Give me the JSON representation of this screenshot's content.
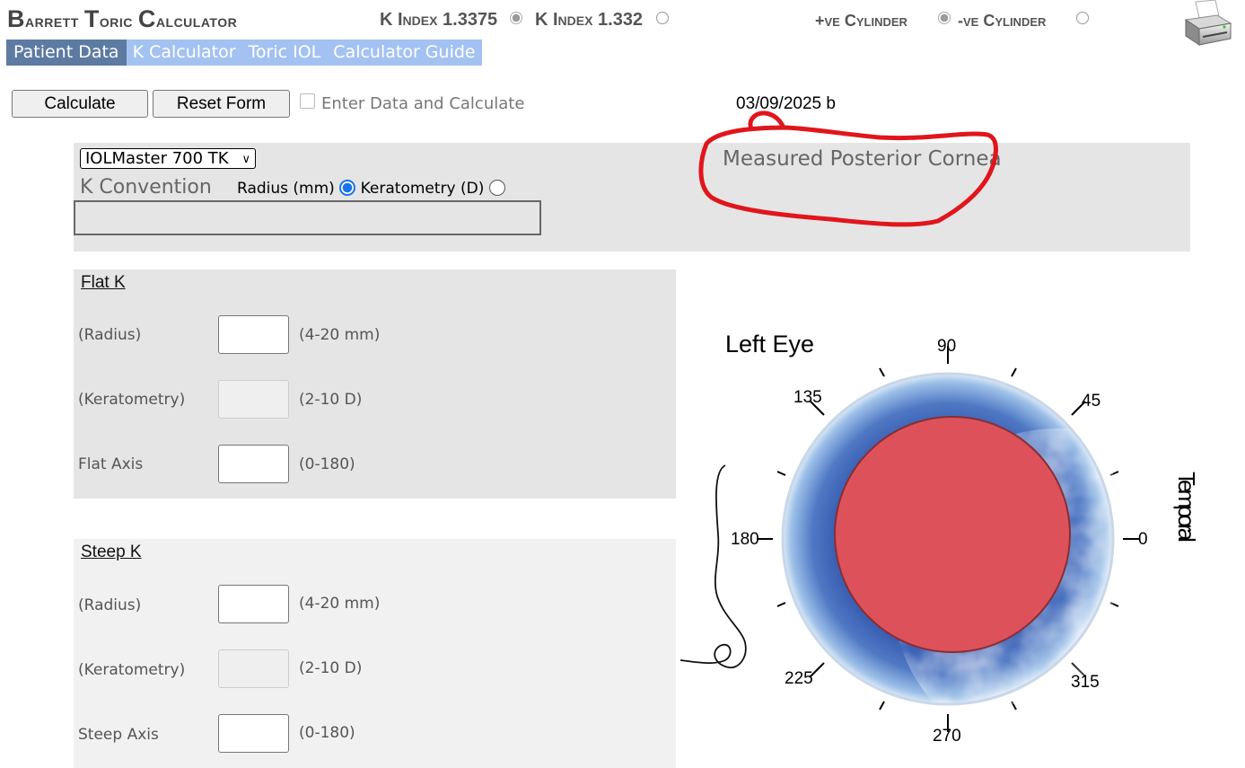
{
  "header": {
    "title_first": "B",
    "title_rest": "arrett ",
    "title_first2": "T",
    "title_rest2": "oric ",
    "title_first3": "C",
    "title_rest3": "alculator",
    "k_index_1": "K Index 1.3375",
    "k_index_2": "K Index 1.332",
    "pos_cyl": "+ve Cylinder",
    "neg_cyl": "-ve Cylinder"
  },
  "nav": {
    "tabs": [
      "Patient Data",
      "K Calculator",
      "Toric IOL",
      "Calculator Guide"
    ],
    "active": 0
  },
  "toolbar": {
    "calculate_label": "Calculate",
    "reset_label": "Reset Form",
    "enter_calc_label": "Enter Data and Calculate",
    "date": "03/09/2025 b"
  },
  "settings": {
    "device": "IOLMaster 700 TK",
    "k_convention_label": "K Convention",
    "radius_label": "Radius (mm)",
    "keratometry_label": "Keratometry (D)",
    "posterior_label": "Measured Posterior Cornea"
  },
  "flat_k": {
    "heading": "Flat K",
    "radius_label": "(Radius)",
    "radius_range": "(4-20 mm)",
    "kerat_label": "(Keratometry)",
    "kerat_range": "(2-10 D)",
    "axis_label": "Flat Axis",
    "axis_range": "(0-180)"
  },
  "steep_k": {
    "heading": "Steep K",
    "radius_label": "(Radius)",
    "radius_range": "(4-20 mm)",
    "kerat_label": "(Keratometry)",
    "kerat_range": "(2-10 D)",
    "axis_label": "Steep Axis",
    "axis_range": "(0-180)"
  },
  "eye_diagram": {
    "title": "Left Eye",
    "side_label": "Temporal",
    "angles": [
      "90",
      "45",
      "0",
      "315",
      "270",
      "225",
      "180",
      "135"
    ]
  },
  "colors": {
    "nav_bg": "#a3c2f2",
    "nav_active": "#5d7aa2",
    "annotation_red": "#e0161c",
    "pupil_red": "#dd525a"
  }
}
